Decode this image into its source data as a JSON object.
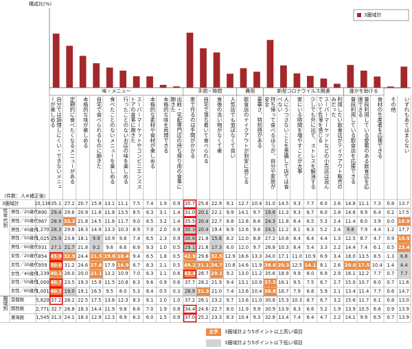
{
  "chart_data": {
    "type": "bar",
    "y_label": "構成比(%)",
    "ylim": [
      0,
      40
    ],
    "series": [
      {
        "name": "3圏域計",
        "color": "#a3282b"
      }
    ],
    "groups": [
      {
        "name": "味・メニュー",
        "span": 10
      },
      {
        "name": "手間・時間",
        "span": 4
      },
      {
        "name": "費用",
        "span": 2
      },
      {
        "name": "新型コロナウイルス関連",
        "span": 6
      },
      {
        "name": "誰かを助ける",
        "span": 3
      }
    ],
    "categories": [
      "自分では調理しにくい・できないメニューが楽しめる",
      "定期的に食べたくなるメニューがある",
      "本格的な味が楽しめる",
      "自宅で食べられるものに飽きた",
      "食べたことのないメニューを楽しめる",
      "行ったことのないお店の味を楽しめる",
      "スーパーマーケットやコンビニエンスストアの食事に飽きた",
      "本格的な素材や食材が楽しめる",
      "本格的な味を再現できる",
      "出前・宅配専門店の持ち帰り用の食事に飽きた",
      "家で作るのは手間がかかる",
      "自宅で落ち着いて食べられる",
      "食後の洗い物がなくて楽",
      "人気店でも並ばなくて良い",
      "飲食店のテイクアウトが割安に感じる",
      "豪華さ、特別感がある",
      "持ち帰って食べるほうが、自分や家族が安全",
      "人にうつさないことを意識して店では食べない",
      "家にいる時間を増やすことが大事",
      "少しでも外に出て、ストレスを解消する",
      "スーパーマーケットなどの小売店は混んでいて危険を感じる",
      "利用したい飲食店がテイクアウト販売のみだった",
      "普段利用している飲食店を応援できる",
      "普段利用している愛着のある飲食店を応援できる",
      "食材の生産者を応援できる",
      "その他",
      "いずれもあてはまらない"
    ],
    "values": [
      35.1,
      27.2,
      20.7,
      15.9,
      13.1,
      11.1,
      7.5,
      7.4,
      1.9,
      0.9,
      35.7,
      25.6,
      22.9,
      9.1,
      12.7,
      10.4,
      31.0,
      14.5,
      9.3,
      7.7,
      6.0,
      2.6,
      14.8,
      11.1,
      7.3,
      0.8,
      13.7
    ],
    "value_labels": [
      "35.1",
      "27.2",
      "20.7",
      "15.9",
      "13.1",
      "11.1",
      "7.5",
      "7.4",
      "1.9",
      "0.9",
      "35.7",
      "25.6",
      "22.9",
      "9.1",
      "12.7",
      "10.4",
      "31.0",
      "14.5",
      "9.3",
      "7.7",
      "6.0",
      "2.6",
      "14.8",
      "11.1",
      "7.3",
      "0.8",
      "13.7"
    ]
  },
  "table": {
    "count_note": "（件数：人※補正後）",
    "total_label": "3圏域計",
    "total_n": "10,136",
    "row_groups": [
      {
        "name": "性年代別",
        "rows": 10
      },
      {
        "name": "圏域別",
        "rows": 3
      }
    ],
    "rows": [
      {
        "label": "男性／20歳代",
        "n": "890",
        "cells": [
          "29.4",
          "29.6",
          "20.9",
          "11.8",
          "11.8",
          "13.5",
          "8.5",
          "6.3",
          "3.1",
          "1.4",
          "31.0",
          "20.1",
          "22.1",
          "9.9",
          "14.1",
          "9.7",
          "19.6",
          "11.3",
          "9.3",
          "6.7",
          "6.0",
          "2.8",
          "14.8",
          "9.9",
          "6.4",
          "0.2",
          "17.5"
        ]
      },
      {
        "label": "男性／30歳代",
        "n": "967",
        "cells": [
          "28.9",
          "33.2",
          "21.8",
          "14.5",
          "11.6",
          "11.7",
          "9.0",
          "8.5",
          "3.2",
          "1.4",
          "35.5",
          "20.4",
          "22.7",
          "8.8",
          "12.8",
          "8.6",
          "24.3",
          "11.8",
          "8.4",
          "6.5",
          "5.3",
          "2.4",
          "11.4",
          "8.0",
          "3.9",
          "0.0",
          "18.9"
        ]
      },
      {
        "label": "男性／40歳代",
        "n": "1,270",
        "cells": [
          "28.3",
          "29.8",
          "16.3",
          "14.9",
          "13.3",
          "10.3",
          "8.9",
          "7.0",
          "2.0",
          "0.9",
          "30.3",
          "20.4",
          "19.4",
          "8.9",
          "12.6",
          "9.6",
          "24.1",
          "11.2",
          "8.1",
          "6.3",
          "5.2",
          "2.4",
          "9.8",
          "7.9",
          "4.4",
          "1.2",
          "17.7"
        ]
      },
      {
        "label": "男性／50歳代",
        "n": "1,025",
        "cells": [
          "25.9",
          "23.8",
          "18.1",
          "9.9",
          "10.9",
          "9.6",
          "7.4",
          "6.5",
          "2.3",
          "0.9",
          "30.6",
          "21.8",
          "15.8",
          "8.2",
          "12.0",
          "8.8",
          "27.2",
          "10.6",
          "8.4",
          "6.4",
          "4.4",
          "1.3",
          "12.5",
          "8.7",
          "4.7",
          "0.9",
          "19.5"
        ]
      },
      {
        "label": "男性／60歳代",
        "n": "931",
        "cells": [
          "27.1",
          "21.7",
          "21.8",
          "9.2",
          "9.6",
          "8.6",
          "6.9",
          "9.3",
          "1.0",
          "0.5",
          "29.1",
          "21.8",
          "17.3",
          "6.0",
          "12.0",
          "9.7",
          "26.8",
          "10.3",
          "8.4",
          "5.4",
          "3.3",
          "2.2",
          "14.4",
          "7.4",
          "6.1",
          "0.5",
          "23.4"
        ]
      },
      {
        "label": "女性／20歳代",
        "n": "854",
        "cells": [
          "45.9",
          "32.9",
          "24.4",
          "21.5",
          "19.8",
          "18.4",
          "9.4",
          "6.5",
          "1.8",
          "0.5",
          "42.9",
          "29.6",
          "32.5",
          "12.9",
          "16.6",
          "13.3",
          "34.0",
          "17.1",
          "11.0",
          "10.9",
          "6.9",
          "3.4",
          "18.0",
          "13.5",
          "8.5",
          "1.3",
          "6.8"
        ]
      },
      {
        "label": "女性／30歳代",
        "n": "959",
        "cells": [
          "50.0",
          "31.2",
          "24.6",
          "27.6",
          "17.9",
          "16.9",
          "8.7",
          "8.3",
          "2.1",
          "0.5",
          "49.2",
          "31.1",
          "34.7",
          "10.8",
          "14.6",
          "11.9",
          "38.6",
          "20.3",
          "12.5",
          "14.1",
          "8.1",
          "2.6",
          "20.6",
          "17.5",
          "10.4",
          "1.4",
          "4.4"
        ]
      },
      {
        "label": "女性／40歳代",
        "n": "1,239",
        "cells": [
          "40.1",
          "26.0",
          "20.0",
          "21.1",
          "13.2",
          "10.9",
          "7.0",
          "6.3",
          "1.1",
          "0.6",
          "43.4",
          "28.7",
          "29.1",
          "9.2",
          "13.0",
          "11.2",
          "35.6",
          "18.9",
          "9.9",
          "8.0",
          "6.9",
          "2.9",
          "16.1",
          "12.2",
          "7.7",
          "0.7",
          "7.7"
        ]
      },
      {
        "label": "女性／50歳代",
        "n": "1,000",
        "cells": [
          "40.7",
          "23.5",
          "19.3",
          "15.9",
          "11.5",
          "10.8",
          "6.3",
          "9.6",
          "0.9",
          "0.6",
          "37.7",
          "28.2",
          "21.9",
          "9.4",
          "13.1",
          "10.9",
          "37.5",
          "16.1",
          "9.5",
          "7.5",
          "6.7",
          "2.7",
          "15.0",
          "10.7",
          "8.0",
          "0.7",
          "11.6"
        ]
      },
      {
        "label": "女性／60歳代",
        "n": "1,001",
        "cells": [
          "40.7",
          "19.0",
          "19.1",
          "16.5",
          "9.5",
          "8.0",
          "5.3",
          "8.4",
          "0.5",
          "0.3",
          "28.9",
          "31.3",
          "21.0",
          "7.4",
          "13.6",
          "10.4",
          "38.8",
          "16.7",
          "7.9",
          "6.8",
          "5.9",
          "2.1",
          "13.4",
          "11.4",
          "7.7",
          "0.6",
          "14.7"
        ]
      },
      {
        "label": "首都圏",
        "n": "5,820",
        "cells": [
          "37.2",
          "28.2",
          "22.5",
          "17.5",
          "13.6",
          "12.3",
          "8.3",
          "8.1",
          "2.0",
          "1.0",
          "37.2",
          "26.1",
          "23.2",
          "9.7",
          "13.6",
          "11.0",
          "30.8",
          "15.3",
          "10.3",
          "8.7",
          "6.7",
          "3.2",
          "15.6",
          "11.7",
          "8.1",
          "0.8",
          "13.0"
        ]
      },
      {
        "label": "関西圏",
        "n": "2,771",
        "cells": [
          "32.7",
          "26.8",
          "18.3",
          "14.4",
          "11.9",
          "9.8",
          "6.6",
          "7.0",
          "1.9",
          "0.8",
          "34.4",
          "24.6",
          "22.7",
          "8.0",
          "11.9",
          "9.9",
          "30.9",
          "13.9",
          "8.3",
          "6.6",
          "5.2",
          "1.9",
          "13.9",
          "10.5",
          "6.6",
          "0.9",
          "13.9"
        ]
      },
      {
        "label": "東海圏",
        "n": "1,545",
        "cells": [
          "31.3",
          "24.1",
          "18.3",
          "12.9",
          "12.3",
          "8.9",
          "6.3",
          "6.0",
          "1.5",
          "0.9",
          "37.0",
          "25.2",
          "23.3",
          "8.3",
          "10.4",
          "9.3",
          "32.8",
          "13.4",
          "7.4",
          "6.4",
          "4.7",
          "2.2",
          "14.1",
          "9.9",
          "6.5",
          "0.7",
          "13.9"
        ]
      }
    ]
  },
  "legend": {
    "threshold": 5,
    "high_sample": "太字",
    "high": "3圏域計より5ポイント以上高い項目",
    "low": "3圏域計より5ポイント以下低い項目"
  }
}
